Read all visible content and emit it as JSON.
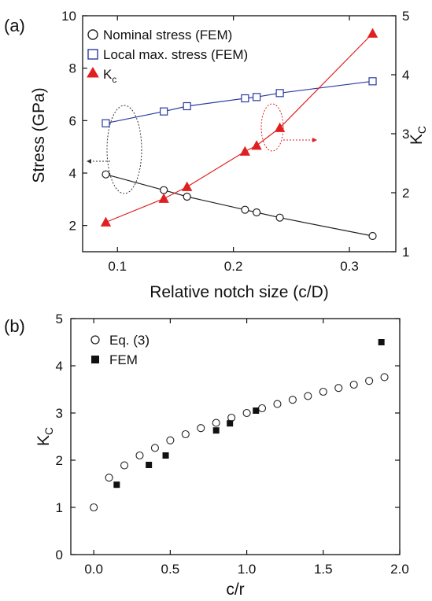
{
  "chart_data": [
    {
      "panel": "(a)",
      "type": "line",
      "xlabel": "Relative notch size (c/D)",
      "ylabel_left": "Stress (GPa)",
      "ylabel_right_main": "K",
      "ylabel_right_sub": "C",
      "xlim": [
        0.07,
        0.34
      ],
      "ylim_left": [
        1,
        10
      ],
      "ylim_right": [
        1,
        5
      ],
      "xticks": [
        0.1,
        0.2,
        0.3
      ],
      "xtick_labels": [
        "0.1",
        "0.2",
        "0.3"
      ],
      "yticks_left": [
        2,
        4,
        6,
        8,
        10
      ],
      "ytick_labels_left": [
        "2",
        "4",
        "6",
        "8",
        "10"
      ],
      "yticks_right": [
        1,
        2,
        3,
        4,
        5
      ],
      "ytick_labels_right": [
        "1",
        "2",
        "3",
        "4",
        "5"
      ],
      "series": [
        {
          "name": "Nominal stress (FEM)",
          "axis": "left",
          "marker": "circle",
          "color": "#222222",
          "x": [
            0.09,
            0.14,
            0.16,
            0.21,
            0.22,
            0.24,
            0.32
          ],
          "y": [
            3.95,
            3.35,
            3.1,
            2.6,
            2.5,
            2.3,
            1.6
          ]
        },
        {
          "name": "Local max. stress (FEM)",
          "axis": "left",
          "marker": "square",
          "color": "#2b3aa0",
          "x": [
            0.09,
            0.14,
            0.16,
            0.21,
            0.22,
            0.24,
            0.32
          ],
          "y": [
            5.9,
            6.35,
            6.55,
            6.85,
            6.9,
            7.05,
            7.5
          ]
        },
        {
          "name_main": "K",
          "name_sub": "c",
          "axis": "right",
          "marker": "triangle",
          "color": "#e02020",
          "x": [
            0.09,
            0.14,
            0.16,
            0.21,
            0.22,
            0.24,
            0.32
          ],
          "y": [
            1.5,
            1.9,
            2.1,
            2.7,
            2.8,
            3.1,
            4.7
          ]
        }
      ]
    },
    {
      "panel": "(b)",
      "type": "scatter",
      "xlabel": "c/r",
      "ylabel_main": "K",
      "ylabel_sub": "C",
      "xlim": [
        -0.15,
        2.0
      ],
      "ylim": [
        0,
        5
      ],
      "xticks": [
        0.0,
        0.5,
        1.0,
        1.5,
        2.0
      ],
      "xtick_labels": [
        "0.0",
        "0.5",
        "1.0",
        "1.5",
        "2.0"
      ],
      "yticks": [
        0,
        1,
        2,
        3,
        4,
        5
      ],
      "ytick_labels": [
        "0",
        "1",
        "2",
        "3",
        "4",
        "5"
      ],
      "series": [
        {
          "name": "Eq. (3)",
          "marker": "circle",
          "color": "#222222",
          "x": [
            0.0,
            0.1,
            0.2,
            0.3,
            0.4,
            0.5,
            0.6,
            0.7,
            0.8,
            0.9,
            1.0,
            1.1,
            1.2,
            1.3,
            1.4,
            1.5,
            1.6,
            1.7,
            1.8,
            1.9
          ],
          "y": [
            1.0,
            1.63,
            1.89,
            2.1,
            2.26,
            2.42,
            2.55,
            2.68,
            2.79,
            2.9,
            3.0,
            3.1,
            3.19,
            3.28,
            3.36,
            3.45,
            3.53,
            3.6,
            3.68,
            3.76
          ]
        },
        {
          "name": "FEM",
          "marker": "filled-square",
          "color": "#111111",
          "x": [
            0.15,
            0.36,
            0.47,
            0.8,
            0.89,
            1.06,
            1.88
          ],
          "y": [
            1.48,
            1.9,
            2.1,
            2.63,
            2.78,
            3.05,
            4.5
          ]
        }
      ]
    }
  ]
}
